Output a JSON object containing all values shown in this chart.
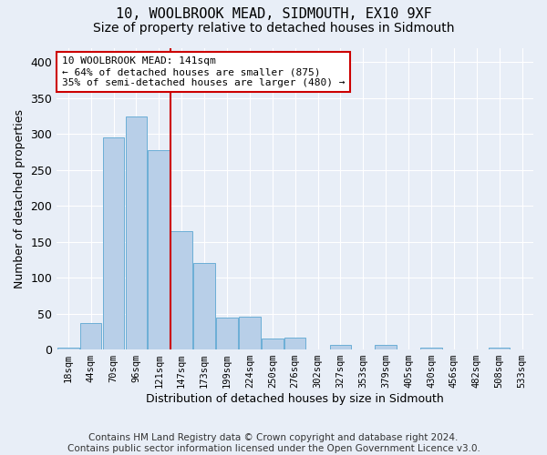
{
  "title1": "10, WOOLBROOK MEAD, SIDMOUTH, EX10 9XF",
  "title2": "Size of property relative to detached houses in Sidmouth",
  "xlabel": "Distribution of detached houses by size in Sidmouth",
  "ylabel": "Number of detached properties",
  "bin_labels": [
    "18sqm",
    "44sqm",
    "70sqm",
    "96sqm",
    "121sqm",
    "147sqm",
    "173sqm",
    "199sqm",
    "224sqm",
    "250sqm",
    "276sqm",
    "302sqm",
    "327sqm",
    "353sqm",
    "379sqm",
    "405sqm",
    "430sqm",
    "456sqm",
    "482sqm",
    "508sqm",
    "533sqm"
  ],
  "bar_heights": [
    3,
    37,
    295,
    325,
    277,
    165,
    120,
    44,
    46,
    15,
    16,
    0,
    6,
    0,
    7,
    0,
    3,
    0,
    0,
    3,
    0
  ],
  "bar_color": "#b8cfe8",
  "bar_edge_color": "#6baed6",
  "annotation_text": "10 WOOLBROOK MEAD: 141sqm\n← 64% of detached houses are smaller (875)\n35% of semi-detached houses are larger (480) →",
  "annotation_box_color": "#ffffff",
  "annotation_border_color": "#cc0000",
  "line_color": "#cc0000",
  "footer_text": "Contains HM Land Registry data © Crown copyright and database right 2024.\nContains public sector information licensed under the Open Government Licence v3.0.",
  "ylim": [
    0,
    420
  ],
  "background_color": "#e8eef7",
  "grid_color": "#ffffff",
  "title_fontsize": 11,
  "subtitle_fontsize": 10,
  "footer_fontsize": 7.5,
  "line_x_index": 4.5
}
